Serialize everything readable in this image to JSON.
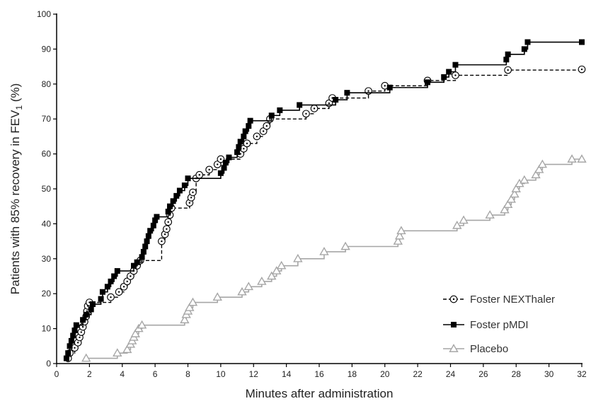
{
  "chart_data": {
    "type": "line",
    "subtype": "step",
    "xlabel": "Minutes after administration",
    "ylabel": "Patients with 85% recovery in FEV",
    "ylabel_subscript": "1",
    "ylabel_suffix": " (%)",
    "xlim": [
      0,
      32
    ],
    "ylim": [
      0,
      100
    ],
    "xticks": [
      0,
      2,
      4,
      6,
      8,
      10,
      12,
      14,
      16,
      18,
      20,
      22,
      24,
      26,
      28,
      30,
      32
    ],
    "yticks": [
      0,
      10,
      20,
      30,
      40,
      50,
      60,
      70,
      80,
      90,
      100
    ],
    "grid": false,
    "legend_position": "bottom-right",
    "series": [
      {
        "name": "Foster NEXThaler",
        "color": "#000000",
        "line_style": "dashed",
        "marker": "open-circle-dot",
        "points": [
          [
            0.7,
            1.5
          ],
          [
            0.8,
            3.0
          ],
          [
            1.1,
            4.5
          ],
          [
            1.3,
            6.0
          ],
          [
            1.4,
            7.5
          ],
          [
            1.5,
            9.0
          ],
          [
            1.6,
            10.5
          ],
          [
            1.7,
            12.0
          ],
          [
            1.8,
            13.5
          ],
          [
            1.85,
            15.0
          ],
          [
            1.9,
            16.5
          ],
          [
            2.0,
            17.5
          ],
          [
            3.3,
            19.0
          ],
          [
            3.8,
            20.5
          ],
          [
            4.1,
            22.0
          ],
          [
            4.3,
            23.5
          ],
          [
            4.5,
            25.0
          ],
          [
            4.7,
            26.5
          ],
          [
            4.9,
            28.0
          ],
          [
            5.1,
            29.5
          ],
          [
            6.4,
            35.0
          ],
          [
            6.6,
            37.0
          ],
          [
            6.7,
            38.5
          ],
          [
            6.8,
            40.5
          ],
          [
            6.9,
            42.5
          ],
          [
            7.0,
            44.5
          ],
          [
            8.1,
            46.0
          ],
          [
            8.2,
            47.5
          ],
          [
            8.3,
            49.0
          ],
          [
            8.5,
            53.0
          ],
          [
            8.7,
            54.0
          ],
          [
            9.3,
            55.5
          ],
          [
            9.8,
            57.0
          ],
          [
            10.0,
            58.5
          ],
          [
            11.2,
            60.0
          ],
          [
            11.4,
            61.5
          ],
          [
            11.6,
            63.0
          ],
          [
            12.2,
            65.0
          ],
          [
            12.6,
            66.5
          ],
          [
            12.8,
            68.0
          ],
          [
            13.0,
            70.0
          ],
          [
            15.2,
            71.5
          ],
          [
            15.7,
            73.0
          ],
          [
            16.6,
            74.5
          ],
          [
            16.8,
            76.0
          ],
          [
            19.0,
            78.0
          ],
          [
            20.0,
            79.5
          ],
          [
            22.6,
            81.0
          ],
          [
            24.3,
            82.5
          ],
          [
            27.5,
            84.0
          ],
          [
            32.0,
            84.2
          ]
        ]
      },
      {
        "name": "Foster pMDI",
        "color": "#000000",
        "line_style": "solid",
        "marker": "filled-square",
        "points": [
          [
            0.6,
            1.5
          ],
          [
            0.7,
            3.0
          ],
          [
            0.8,
            5.0
          ],
          [
            0.9,
            6.5
          ],
          [
            1.0,
            8.0
          ],
          [
            1.1,
            9.5
          ],
          [
            1.2,
            11.0
          ],
          [
            1.6,
            12.5
          ],
          [
            1.8,
            14.0
          ],
          [
            2.1,
            15.5
          ],
          [
            2.2,
            17.0
          ],
          [
            2.7,
            18.5
          ],
          [
            2.8,
            20.5
          ],
          [
            3.1,
            22.0
          ],
          [
            3.3,
            23.5
          ],
          [
            3.5,
            25.0
          ],
          [
            3.7,
            26.5
          ],
          [
            4.7,
            28.0
          ],
          [
            4.9,
            29.0
          ],
          [
            5.2,
            30.5
          ],
          [
            5.3,
            32.0
          ],
          [
            5.4,
            33.5
          ],
          [
            5.5,
            35.0
          ],
          [
            5.6,
            36.5
          ],
          [
            5.7,
            38.0
          ],
          [
            5.9,
            39.5
          ],
          [
            6.0,
            41.0
          ],
          [
            6.1,
            42.0
          ],
          [
            6.8,
            43.5
          ],
          [
            6.9,
            45.0
          ],
          [
            7.1,
            46.5
          ],
          [
            7.3,
            48.0
          ],
          [
            7.5,
            49.5
          ],
          [
            7.8,
            51.0
          ],
          [
            8.0,
            53.0
          ],
          [
            10.0,
            54.5
          ],
          [
            10.2,
            56.0
          ],
          [
            10.3,
            57.5
          ],
          [
            10.5,
            59.0
          ],
          [
            11.0,
            60.5
          ],
          [
            11.1,
            62.0
          ],
          [
            11.2,
            63.5
          ],
          [
            11.4,
            65.0
          ],
          [
            11.5,
            66.5
          ],
          [
            11.7,
            68.0
          ],
          [
            11.8,
            69.5
          ],
          [
            13.1,
            71.0
          ],
          [
            13.6,
            72.5
          ],
          [
            14.8,
            74.0
          ],
          [
            17.0,
            75.5
          ],
          [
            17.7,
            77.5
          ],
          [
            20.3,
            79.0
          ],
          [
            22.6,
            80.5
          ],
          [
            23.6,
            82.0
          ],
          [
            23.9,
            83.5
          ],
          [
            24.3,
            85.5
          ],
          [
            27.4,
            87.0
          ],
          [
            27.5,
            88.5
          ],
          [
            28.5,
            90.0
          ],
          [
            28.7,
            92.0
          ],
          [
            32.0,
            92.0
          ]
        ]
      },
      {
        "name": "Placebo",
        "color": "#a6a6a6",
        "line_style": "solid",
        "marker": "open-triangle",
        "points": [
          [
            1.8,
            1.5
          ],
          [
            3.7,
            3.0
          ],
          [
            4.3,
            4.0
          ],
          [
            4.5,
            5.5
          ],
          [
            4.6,
            6.5
          ],
          [
            4.7,
            7.5
          ],
          [
            4.8,
            8.5
          ],
          [
            5.0,
            10.0
          ],
          [
            5.2,
            11.0
          ],
          [
            7.8,
            12.5
          ],
          [
            7.9,
            14.0
          ],
          [
            8.0,
            15.0
          ],
          [
            8.1,
            16.0
          ],
          [
            8.3,
            17.5
          ],
          [
            9.8,
            19.0
          ],
          [
            11.3,
            20.5
          ],
          [
            11.7,
            22.0
          ],
          [
            12.5,
            23.5
          ],
          [
            13.1,
            25.0
          ],
          [
            13.4,
            26.5
          ],
          [
            13.7,
            28.0
          ],
          [
            14.7,
            30.0
          ],
          [
            16.3,
            32.0
          ],
          [
            17.6,
            33.5
          ],
          [
            20.8,
            35.0
          ],
          [
            20.9,
            36.5
          ],
          [
            21.0,
            38.0
          ],
          [
            24.4,
            39.5
          ],
          [
            24.8,
            41.0
          ],
          [
            26.4,
            42.5
          ],
          [
            27.3,
            44.0
          ],
          [
            27.5,
            45.5
          ],
          [
            27.7,
            47.0
          ],
          [
            27.9,
            48.5
          ],
          [
            28.0,
            50.0
          ],
          [
            28.2,
            51.5
          ],
          [
            28.5,
            52.5
          ],
          [
            29.2,
            54.0
          ],
          [
            29.4,
            55.5
          ],
          [
            29.6,
            57.0
          ],
          [
            31.4,
            58.5
          ],
          [
            32.0,
            58.5
          ]
        ]
      }
    ]
  }
}
